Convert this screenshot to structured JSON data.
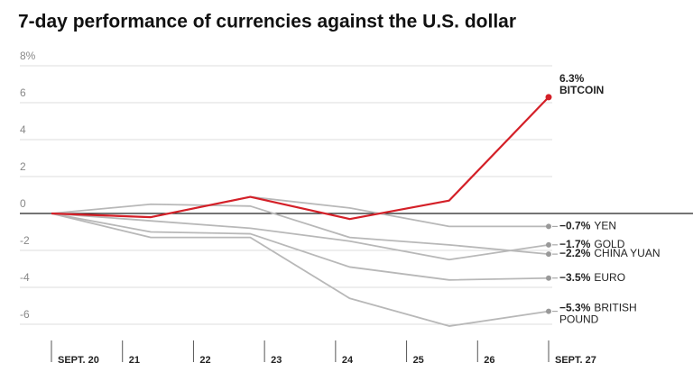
{
  "chart_data": {
    "type": "line",
    "title": "7-day performance of currencies against the U.S. dollar",
    "x": [
      0,
      1.4,
      2.8,
      4.2,
      5.6,
      7
    ],
    "xlim": [
      0,
      7
    ],
    "xticks": [
      {
        "value": 0,
        "label": "SEPT. 20"
      },
      {
        "value": 1,
        "label": "21"
      },
      {
        "value": 2,
        "label": "22"
      },
      {
        "value": 3,
        "label": "23"
      },
      {
        "value": 4,
        "label": "24"
      },
      {
        "value": 5,
        "label": "25"
      },
      {
        "value": 6,
        "label": "26"
      },
      {
        "value": 7,
        "label": "SEPT. 27"
      }
    ],
    "ylim": [
      -6.6,
      8
    ],
    "yticks": [
      {
        "value": 8,
        "label": "8%"
      },
      6,
      4,
      2,
      0,
      -2,
      -4,
      -6
    ],
    "grid": true,
    "series": [
      {
        "name": "BITCOIN",
        "color": "#d42028",
        "values": [
          0,
          -0.2,
          0.9,
          -0.3,
          0.7,
          6.3
        ],
        "end_label": "6.3%"
      },
      {
        "name": "YEN",
        "color": "#b8b8b8",
        "values": [
          0,
          -0.2,
          0.9,
          0.3,
          -0.7,
          -0.7
        ],
        "end_label": "−0.7%"
      },
      {
        "name": "GOLD",
        "color": "#b8b8b8",
        "values": [
          0,
          -0.4,
          -0.8,
          -1.5,
          -2.5,
          -1.7
        ],
        "end_label": "−1.7%"
      },
      {
        "name": "CHINA YUAN",
        "color": "#b8b8b8",
        "values": [
          0,
          0.5,
          0.4,
          -1.3,
          -1.7,
          -2.2
        ],
        "end_label": "−2.2%"
      },
      {
        "name": "EURO",
        "color": "#b8b8b8",
        "values": [
          0,
          -1.0,
          -1.1,
          -2.9,
          -3.6,
          -3.5
        ],
        "end_label": "−3.5%"
      },
      {
        "name": "BRITISH POUND",
        "color": "#b8b8b8",
        "values": [
          0,
          -1.3,
          -1.3,
          -4.6,
          -6.1,
          -5.3
        ],
        "end_label": "−5.3%"
      }
    ]
  }
}
